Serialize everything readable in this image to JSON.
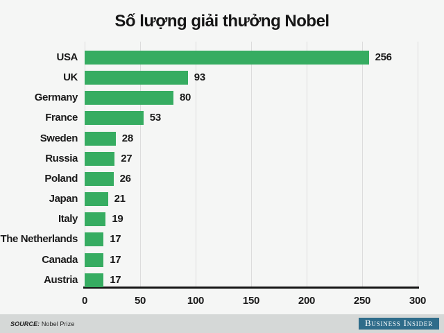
{
  "chart_data": {
    "type": "bar",
    "orientation": "horizontal",
    "title": "Số lượng giải thưởng Nobel",
    "categories": [
      "USA",
      "UK",
      "Germany",
      "France",
      "Sweden",
      "Russia",
      "Poland",
      "Japan",
      "Italy",
      "The Netherlands",
      "Canada",
      "Austria"
    ],
    "values": [
      256,
      93,
      80,
      53,
      28,
      27,
      26,
      21,
      19,
      17,
      17,
      17
    ],
    "xlabel": "",
    "ylabel": "",
    "xlim": [
      0,
      300
    ],
    "x_ticks": [
      0,
      50,
      100,
      150,
      200,
      250,
      300
    ],
    "grid": "vertical-gridlines-on",
    "legend": "none",
    "value_labels": "at-bar-end",
    "bar_color": "#36ac61"
  },
  "footer": {
    "source_label": "SOURCE:",
    "source_value": "Nobel Prize",
    "brand_name": "Business Insider",
    "brand_bg": "#2e6c8a"
  },
  "colors": {
    "background": "#f5f6f5",
    "gridline": "#dcdcdc",
    "axis_line": "#151515",
    "text": "#1a1a1a",
    "footer_bg": "#d5d8d7"
  }
}
